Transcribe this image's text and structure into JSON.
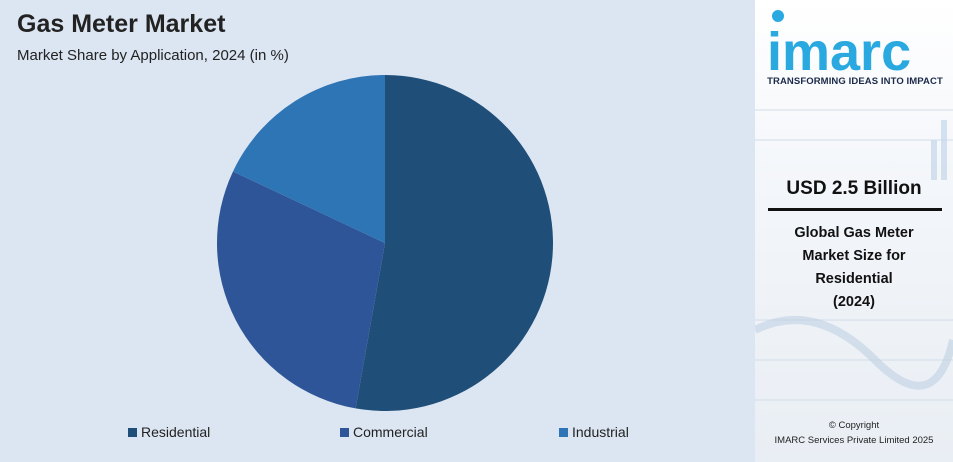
{
  "header": {
    "title": "Gas Meter Market",
    "subtitle": "Market Share by Application, 2024 (in %)"
  },
  "colors": {
    "panel_background": "#dce6f2",
    "residential": "#1f4e79",
    "commercial": "#2e5597",
    "industrial": "#2e75b6"
  },
  "chart_data": {
    "type": "pie",
    "title": "Gas Meter Market",
    "subtitle": "Market Share by Application, 2024 (in %)",
    "categories": [
      "Residential",
      "Commercial",
      "Industrial"
    ],
    "values": [
      52.8,
      29.2,
      18.0
    ],
    "start": "12 o'clock",
    "direction": "clockwise",
    "legend_position": "bottom",
    "data_labels": false,
    "colors": [
      "#1f4e79",
      "#2e5597",
      "#2e75b6"
    ]
  },
  "legend": {
    "items": [
      {
        "label": "Residential",
        "color": "#1f4e79"
      },
      {
        "label": "Commercial",
        "color": "#2e5597"
      },
      {
        "label": "Industrial",
        "color": "#2e75b6"
      }
    ]
  },
  "sidebar": {
    "logo_text": "imarc",
    "tagline": "TRANSFORMING IDEAS INTO IMPACT",
    "kpi_value": "USD 2.5 Billion",
    "kpi_description_lines": [
      "Global Gas Meter",
      "Market Size for",
      "Residential",
      "(2024)"
    ],
    "copyright_line1": "© Copyright",
    "copyright_line2": "IMARC Services Private Limited 2025"
  }
}
